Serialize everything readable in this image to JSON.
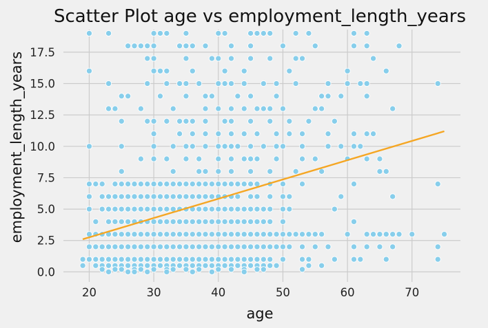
{
  "chart_data": {
    "type": "scatter",
    "title": "Scatter Plot age vs employment_length_years",
    "xlabel": "age",
    "ylabel": "employment_length_years",
    "xlim": [
      16,
      77.5
    ],
    "ylim": [
      -0.8,
      19.3
    ],
    "xticks": [
      20,
      30,
      40,
      50,
      60,
      70
    ],
    "yticks": [
      0.0,
      2.5,
      5.0,
      7.5,
      10.0,
      12.5,
      15.0,
      17.5
    ],
    "xtick_labels": [
      "20",
      "30",
      "40",
      "50",
      "60",
      "70"
    ],
    "ytick_labels": [
      "0.0",
      "2.5",
      "5.0",
      "7.5",
      "10.0",
      "12.5",
      "15.0",
      "17.5"
    ],
    "grid": true,
    "point_color": "#87ceeb",
    "trend_color": "#f5a623",
    "background": "#f0f0f0",
    "trend_line": [
      [
        19,
        2.6
      ],
      [
        75,
        11.2
      ]
    ],
    "points": [
      [
        20,
        19
      ],
      [
        23,
        19
      ],
      [
        30,
        19
      ],
      [
        31,
        19
      ],
      [
        32,
        19
      ],
      [
        35,
        19
      ],
      [
        40,
        19
      ],
      [
        41,
        19
      ],
      [
        45,
        19
      ],
      [
        46,
        19
      ],
      [
        47,
        19
      ],
      [
        48,
        19
      ],
      [
        52,
        19
      ],
      [
        54,
        19
      ],
      [
        61,
        19
      ],
      [
        63,
        19
      ],
      [
        26,
        18
      ],
      [
        27,
        18
      ],
      [
        28,
        18
      ],
      [
        29,
        18
      ],
      [
        30,
        18
      ],
      [
        34,
        18
      ],
      [
        35,
        18
      ],
      [
        36,
        18
      ],
      [
        38,
        18
      ],
      [
        42,
        18
      ],
      [
        45,
        18
      ],
      [
        50,
        18
      ],
      [
        55,
        18
      ],
      [
        61,
        18
      ],
      [
        63,
        18
      ],
      [
        68,
        18
      ],
      [
        29,
        17
      ],
      [
        30,
        17
      ],
      [
        35,
        17
      ],
      [
        39,
        17
      ],
      [
        40,
        17
      ],
      [
        42,
        17
      ],
      [
        45,
        17
      ],
      [
        48,
        17
      ],
      [
        52,
        17
      ],
      [
        53,
        17
      ],
      [
        64,
        17
      ],
      [
        20,
        16
      ],
      [
        30,
        16
      ],
      [
        31,
        16
      ],
      [
        32,
        16
      ],
      [
        36,
        16
      ],
      [
        41,
        16
      ],
      [
        44,
        16
      ],
      [
        51,
        16
      ],
      [
        60,
        16
      ],
      [
        66,
        16
      ],
      [
        23,
        15
      ],
      [
        29,
        15
      ],
      [
        32,
        15
      ],
      [
        34,
        15
      ],
      [
        35,
        15
      ],
      [
        37,
        15
      ],
      [
        40,
        15
      ],
      [
        41,
        15
      ],
      [
        42,
        15
      ],
      [
        44,
        15
      ],
      [
        47,
        15
      ],
      [
        49,
        15
      ],
      [
        52,
        15
      ],
      [
        57,
        15
      ],
      [
        60,
        15
      ],
      [
        62,
        15
      ],
      [
        63,
        15
      ],
      [
        74,
        15
      ],
      [
        25,
        14
      ],
      [
        26,
        14
      ],
      [
        31,
        14
      ],
      [
        35,
        14
      ],
      [
        38,
        14
      ],
      [
        39,
        14
      ],
      [
        43,
        14
      ],
      [
        45,
        14
      ],
      [
        49,
        14
      ],
      [
        56,
        14
      ],
      [
        57,
        14
      ],
      [
        59,
        14
      ],
      [
        63,
        14
      ],
      [
        23,
        13
      ],
      [
        24,
        13
      ],
      [
        28,
        13
      ],
      [
        33,
        13
      ],
      [
        38,
        13
      ],
      [
        40,
        13
      ],
      [
        42,
        13
      ],
      [
        44,
        13
      ],
      [
        46,
        13
      ],
      [
        47,
        13
      ],
      [
        48,
        13
      ],
      [
        50,
        13
      ],
      [
        55,
        13
      ],
      [
        56,
        13
      ],
      [
        67,
        13
      ],
      [
        25,
        12
      ],
      [
        29,
        12
      ],
      [
        30,
        12
      ],
      [
        32,
        12
      ],
      [
        34,
        12
      ],
      [
        35,
        12
      ],
      [
        36,
        12
      ],
      [
        38,
        12
      ],
      [
        41,
        12
      ],
      [
        42,
        12
      ],
      [
        45,
        12
      ],
      [
        48,
        12
      ],
      [
        51,
        12
      ],
      [
        54,
        12
      ],
      [
        58,
        12
      ],
      [
        30,
        11
      ],
      [
        34,
        11
      ],
      [
        36,
        11
      ],
      [
        38,
        11
      ],
      [
        40,
        11
      ],
      [
        42,
        11
      ],
      [
        44,
        11
      ],
      [
        46,
        11
      ],
      [
        49,
        11
      ],
      [
        51,
        11
      ],
      [
        53,
        11
      ],
      [
        57,
        11
      ],
      [
        61,
        11
      ],
      [
        63,
        11
      ],
      [
        64,
        11
      ],
      [
        20,
        10
      ],
      [
        25,
        10
      ],
      [
        30,
        10
      ],
      [
        33,
        10
      ],
      [
        35,
        10
      ],
      [
        36,
        10
      ],
      [
        38,
        10
      ],
      [
        40,
        10
      ],
      [
        41,
        10
      ],
      [
        42,
        10
      ],
      [
        43,
        10
      ],
      [
        45,
        10
      ],
      [
        47,
        10
      ],
      [
        49,
        10
      ],
      [
        50,
        10
      ],
      [
        53,
        10
      ],
      [
        57,
        10
      ],
      [
        59,
        10
      ],
      [
        61,
        10
      ],
      [
        62,
        10
      ],
      [
        28,
        9
      ],
      [
        30,
        9
      ],
      [
        32,
        9
      ],
      [
        35,
        9
      ],
      [
        37,
        9
      ],
      [
        40,
        9
      ],
      [
        42,
        9
      ],
      [
        44,
        9
      ],
      [
        45,
        9
      ],
      [
        46,
        9
      ],
      [
        49,
        9
      ],
      [
        53,
        9
      ],
      [
        55,
        9
      ],
      [
        60,
        9
      ],
      [
        63,
        9
      ],
      [
        65,
        9
      ],
      [
        25,
        8
      ],
      [
        33,
        8
      ],
      [
        37,
        8
      ],
      [
        38,
        8
      ],
      [
        40,
        8
      ],
      [
        42,
        8
      ],
      [
        45,
        8
      ],
      [
        48,
        8
      ],
      [
        52,
        8
      ],
      [
        56,
        8
      ],
      [
        65,
        8
      ],
      [
        66,
        8
      ],
      [
        20,
        7
      ],
      [
        21,
        7
      ],
      [
        22,
        7
      ],
      [
        24,
        7
      ],
      [
        25,
        7
      ],
      [
        26,
        7
      ],
      [
        27,
        7
      ],
      [
        28,
        7
      ],
      [
        29,
        7
      ],
      [
        30,
        7
      ],
      [
        31,
        7
      ],
      [
        32,
        7
      ],
      [
        33,
        7
      ],
      [
        34,
        7
      ],
      [
        35,
        7
      ],
      [
        36,
        7
      ],
      [
        37,
        7
      ],
      [
        38,
        7
      ],
      [
        39,
        7
      ],
      [
        40,
        7
      ],
      [
        41,
        7
      ],
      [
        42,
        7
      ],
      [
        43,
        7
      ],
      [
        44,
        7
      ],
      [
        45,
        7
      ],
      [
        46,
        7
      ],
      [
        48,
        7
      ],
      [
        50,
        7
      ],
      [
        53,
        7
      ],
      [
        61,
        7
      ],
      [
        74,
        7
      ],
      [
        20,
        6
      ],
      [
        22,
        6
      ],
      [
        23,
        6
      ],
      [
        24,
        6
      ],
      [
        25,
        6
      ],
      [
        26,
        6
      ],
      [
        27,
        6
      ],
      [
        28,
        6
      ],
      [
        29,
        6
      ],
      [
        30,
        6
      ],
      [
        31,
        6
      ],
      [
        32,
        6
      ],
      [
        33,
        6
      ],
      [
        34,
        6
      ],
      [
        35,
        6
      ],
      [
        36,
        6
      ],
      [
        37,
        6
      ],
      [
        38,
        6
      ],
      [
        39,
        6
      ],
      [
        40,
        6
      ],
      [
        41,
        6
      ],
      [
        42,
        6
      ],
      [
        43,
        6
      ],
      [
        45,
        6
      ],
      [
        46,
        6
      ],
      [
        48,
        6
      ],
      [
        50,
        6
      ],
      [
        51,
        6
      ],
      [
        59,
        6
      ],
      [
        67,
        6
      ],
      [
        20,
        5
      ],
      [
        22,
        5
      ],
      [
        23,
        5
      ],
      [
        24,
        5
      ],
      [
        25,
        5
      ],
      [
        26,
        5
      ],
      [
        27,
        5
      ],
      [
        28,
        5
      ],
      [
        29,
        5
      ],
      [
        30,
        5
      ],
      [
        31,
        5
      ],
      [
        32,
        5
      ],
      [
        33,
        5
      ],
      [
        34,
        5
      ],
      [
        35,
        5
      ],
      [
        36,
        5
      ],
      [
        37,
        5
      ],
      [
        38,
        5
      ],
      [
        39,
        5
      ],
      [
        40,
        5
      ],
      [
        41,
        5
      ],
      [
        42,
        5
      ],
      [
        43,
        5
      ],
      [
        44,
        5
      ],
      [
        45,
        5
      ],
      [
        46,
        5
      ],
      [
        47,
        5
      ],
      [
        48,
        5
      ],
      [
        50,
        5
      ],
      [
        51,
        5
      ],
      [
        58,
        5
      ],
      [
        21,
        4
      ],
      [
        23,
        4
      ],
      [
        24,
        4
      ],
      [
        25,
        4
      ],
      [
        26,
        4
      ],
      [
        27,
        4
      ],
      [
        28,
        4
      ],
      [
        29,
        4
      ],
      [
        30,
        4
      ],
      [
        31,
        4
      ],
      [
        32,
        4
      ],
      [
        33,
        4
      ],
      [
        34,
        4
      ],
      [
        35,
        4
      ],
      [
        36,
        4
      ],
      [
        37,
        4
      ],
      [
        38,
        4
      ],
      [
        39,
        4
      ],
      [
        40,
        4
      ],
      [
        41,
        4
      ],
      [
        42,
        4
      ],
      [
        43,
        4
      ],
      [
        44,
        4
      ],
      [
        45,
        4
      ],
      [
        46,
        4
      ],
      [
        47,
        4
      ],
      [
        48,
        4
      ],
      [
        50,
        4
      ],
      [
        61,
        4
      ],
      [
        20,
        3
      ],
      [
        21,
        3
      ],
      [
        22,
        3
      ],
      [
        23,
        3
      ],
      [
        24,
        3
      ],
      [
        25,
        3
      ],
      [
        26,
        3
      ],
      [
        27,
        3
      ],
      [
        28,
        3
      ],
      [
        29,
        3
      ],
      [
        30,
        3
      ],
      [
        31,
        3
      ],
      [
        32,
        3
      ],
      [
        33,
        3
      ],
      [
        34,
        3
      ],
      [
        35,
        3
      ],
      [
        36,
        3
      ],
      [
        37,
        3
      ],
      [
        38,
        3
      ],
      [
        39,
        3
      ],
      [
        40,
        3
      ],
      [
        41,
        3
      ],
      [
        42,
        3
      ],
      [
        43,
        3
      ],
      [
        44,
        3
      ],
      [
        45,
        3
      ],
      [
        46,
        3
      ],
      [
        47,
        3
      ],
      [
        48,
        3
      ],
      [
        49,
        3
      ],
      [
        50,
        3
      ],
      [
        51,
        3
      ],
      [
        52,
        3
      ],
      [
        53,
        3
      ],
      [
        54,
        3
      ],
      [
        55,
        3
      ],
      [
        56,
        3
      ],
      [
        60,
        3
      ],
      [
        63,
        3
      ],
      [
        64,
        3
      ],
      [
        65,
        3
      ],
      [
        66,
        3
      ],
      [
        67,
        3
      ],
      [
        68,
        3
      ],
      [
        70,
        3
      ],
      [
        75,
        3
      ],
      [
        20,
        2
      ],
      [
        21,
        2
      ],
      [
        22,
        2
      ],
      [
        23,
        2
      ],
      [
        24,
        2
      ],
      [
        25,
        2
      ],
      [
        26,
        2
      ],
      [
        27,
        2
      ],
      [
        28,
        2
      ],
      [
        29,
        2
      ],
      [
        30,
        2
      ],
      [
        31,
        2
      ],
      [
        32,
        2
      ],
      [
        33,
        2
      ],
      [
        34,
        2
      ],
      [
        35,
        2
      ],
      [
        36,
        2
      ],
      [
        37,
        2
      ],
      [
        38,
        2
      ],
      [
        39,
        2
      ],
      [
        40,
        2
      ],
      [
        41,
        2
      ],
      [
        42,
        2
      ],
      [
        43,
        2
      ],
      [
        44,
        2
      ],
      [
        45,
        2
      ],
      [
        46,
        2
      ],
      [
        47,
        2
      ],
      [
        48,
        2
      ],
      [
        49,
        2
      ],
      [
        50,
        2
      ],
      [
        51,
        2
      ],
      [
        53,
        2
      ],
      [
        55,
        2
      ],
      [
        57,
        2
      ],
      [
        61,
        2
      ],
      [
        63,
        2
      ],
      [
        65,
        2
      ],
      [
        67,
        2
      ],
      [
        74,
        2
      ],
      [
        19,
        1
      ],
      [
        20,
        1
      ],
      [
        21,
        1
      ],
      [
        22,
        1
      ],
      [
        23,
        1
      ],
      [
        24,
        1
      ],
      [
        25,
        1
      ],
      [
        26,
        1
      ],
      [
        27,
        1
      ],
      [
        28,
        1
      ],
      [
        29,
        1
      ],
      [
        30,
        1
      ],
      [
        31,
        1
      ],
      [
        32,
        1
      ],
      [
        33,
        1
      ],
      [
        34,
        1
      ],
      [
        35,
        1
      ],
      [
        36,
        1
      ],
      [
        37,
        1
      ],
      [
        38,
        1
      ],
      [
        39,
        1
      ],
      [
        40,
        1
      ],
      [
        41,
        1
      ],
      [
        42,
        1
      ],
      [
        43,
        1
      ],
      [
        44,
        1
      ],
      [
        45,
        1
      ],
      [
        46,
        1
      ],
      [
        47,
        1
      ],
      [
        48,
        1
      ],
      [
        50,
        1
      ],
      [
        53,
        1
      ],
      [
        54,
        1
      ],
      [
        58,
        1
      ],
      [
        61,
        1
      ],
      [
        62,
        1
      ],
      [
        66,
        1
      ],
      [
        74,
        1
      ],
      [
        19,
        0.5
      ],
      [
        21,
        0.5
      ],
      [
        22,
        0.5
      ],
      [
        23,
        0.5
      ],
      [
        24,
        0.5
      ],
      [
        25,
        0.5
      ],
      [
        26,
        0.5
      ],
      [
        27,
        0.5
      ],
      [
        28,
        0.5
      ],
      [
        29,
        0.5
      ],
      [
        30,
        0.5
      ],
      [
        31,
        0.5
      ],
      [
        32,
        0.5
      ],
      [
        33,
        0.5
      ],
      [
        34,
        0.5
      ],
      [
        35,
        0.5
      ],
      [
        36,
        0.5
      ],
      [
        37,
        0.5
      ],
      [
        38,
        0.5
      ],
      [
        39,
        0.5
      ],
      [
        40,
        0.5
      ],
      [
        41,
        0.5
      ],
      [
        42,
        0.5
      ],
      [
        43,
        0.5
      ],
      [
        44,
        0.5
      ],
      [
        45,
        0.5
      ],
      [
        46,
        0.5
      ],
      [
        47,
        0.5
      ],
      [
        48,
        0.5
      ],
      [
        49,
        0.5
      ],
      [
        54,
        0.5
      ],
      [
        56,
        0.5
      ],
      [
        22,
        0.2
      ],
      [
        24,
        0.2
      ],
      [
        25,
        0.2
      ],
      [
        27,
        0.2
      ],
      [
        28,
        0.2
      ],
      [
        30,
        0.2
      ],
      [
        32,
        0.2
      ],
      [
        33,
        0.2
      ],
      [
        35,
        0.2
      ],
      [
        37,
        0.2
      ],
      [
        40,
        0.2
      ],
      [
        42,
        0.2
      ],
      [
        44,
        0.2
      ],
      [
        46,
        0.2
      ],
      [
        47,
        0.2
      ],
      [
        53,
        0.2
      ],
      [
        23,
        0
      ],
      [
        26,
        0
      ],
      [
        27,
        0
      ],
      [
        29,
        0
      ],
      [
        32,
        0
      ],
      [
        36,
        0
      ],
      [
        39,
        0
      ],
      [
        44,
        0
      ]
    ]
  }
}
